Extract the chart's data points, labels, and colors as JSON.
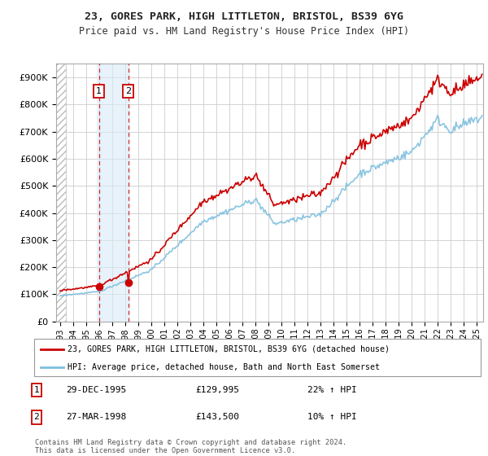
{
  "title": "23, GORES PARK, HIGH LITTLETON, BRISTOL, BS39 6YG",
  "subtitle": "Price paid vs. HM Land Registry's House Price Index (HPI)",
  "ylabel_ticks": [
    0,
    100000,
    200000,
    300000,
    400000,
    500000,
    600000,
    700000,
    800000,
    900000
  ],
  "ylabel_labels": [
    "£0",
    "£100K",
    "£200K",
    "£300K",
    "£400K",
    "£500K",
    "£600K",
    "£700K",
    "£800K",
    "£900K"
  ],
  "ylim": [
    0,
    950000
  ],
  "xlim_start": 1993.0,
  "xlim_end": 2025.5,
  "hpi_color": "#7fbfdf",
  "price_color": "#cc0000",
  "purchase1_x": 1995.99,
  "purchase1_y": 129995,
  "purchase2_x": 1998.24,
  "purchase2_y": 143500,
  "purchase1_date": "29-DEC-1995",
  "purchase1_price": "£129,995",
  "purchase1_hpi": "22% ↑ HPI",
  "purchase2_date": "27-MAR-1998",
  "purchase2_price": "£143,500",
  "purchase2_hpi": "10% ↑ HPI",
  "legend_line1": "23, GORES PARK, HIGH LITTLETON, BRISTOL, BS39 6YG (detached house)",
  "legend_line2": "HPI: Average price, detached house, Bath and North East Somerset",
  "footnote": "Contains HM Land Registry data © Crown copyright and database right 2024.\nThis data is licensed under the Open Government Licence v3.0.",
  "xtick_years": [
    1993,
    1994,
    1995,
    1996,
    1997,
    1998,
    1999,
    2000,
    2001,
    2002,
    2003,
    2004,
    2005,
    2006,
    2007,
    2008,
    2009,
    2010,
    2011,
    2012,
    2013,
    2014,
    2015,
    2016,
    2017,
    2018,
    2019,
    2020,
    2021,
    2022,
    2023,
    2024,
    2025
  ],
  "bg_color": "#ffffff",
  "grid_color": "#cccccc",
  "hatch_end": 1993.42
}
